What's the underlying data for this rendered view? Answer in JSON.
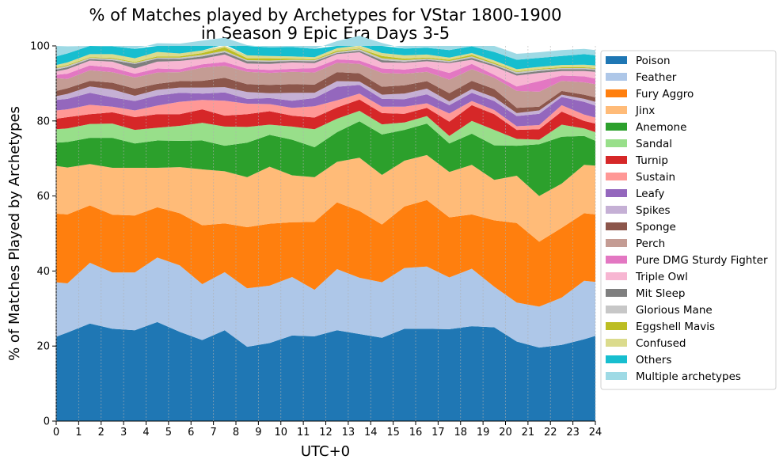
{
  "chart_data": {
    "type": "area",
    "stacked": true,
    "title_lines": [
      "% of Matches played by Archetypes for VStar 1800-1900",
      "in Season 9 Epic Era Days 3-5"
    ],
    "xlabel": "UTC+0",
    "ylabel": "% of Matches Played by Archetypes",
    "xlim": [
      0,
      24
    ],
    "ylim": [
      0,
      100
    ],
    "xticks": [
      0,
      1,
      2,
      3,
      4,
      5,
      6,
      7,
      8,
      9,
      10,
      11,
      12,
      13,
      14,
      15,
      16,
      17,
      18,
      19,
      20,
      21,
      22,
      23,
      24
    ],
    "yticks": [
      0,
      20,
      40,
      60,
      80,
      100
    ],
    "grid": "vertical dashed at x ticks",
    "legend_position": "outside-right",
    "x": [
      0,
      0.5,
      1.5,
      2.5,
      3.5,
      4.5,
      5.5,
      6.5,
      7.5,
      8.5,
      9.5,
      10.5,
      11.5,
      12.5,
      13.5,
      14.5,
      15.5,
      16.5,
      17.5,
      18.5,
      19.5,
      20.5,
      21.5,
      22.5,
      23.5,
      24
    ],
    "series": [
      {
        "name": "Poison",
        "color": "#1f77b4",
        "values": [
          22.5,
          23.6,
          26.0,
          24.6,
          24.2,
          26.4,
          23.8,
          21.6,
          24.2,
          19.8,
          20.8,
          22.8,
          22.6,
          24.2,
          23.2,
          22.2,
          24.6,
          24.6,
          24.5,
          25.3,
          25.0,
          21.2,
          19.6,
          20.3,
          21.8,
          22.7
        ]
      },
      {
        "name": "Feather",
        "color": "#aec7e8",
        "values": [
          14.5,
          13.1,
          16.2,
          15.0,
          15.4,
          17.2,
          17.7,
          14.9,
          15.5,
          15.6,
          15.3,
          15.6,
          12.4,
          16.3,
          15.0,
          14.8,
          16.2,
          16.6,
          13.8,
          15.3,
          10.8,
          10.4,
          10.9,
          12.6,
          15.6,
          14.4
        ]
      },
      {
        "name": "Fury Aggro",
        "color": "#ff7f0e",
        "values": [
          18.3,
          18.4,
          15.3,
          15.4,
          15.2,
          13.4,
          13.9,
          15.7,
          13.0,
          16.3,
          16.5,
          14.6,
          18.1,
          17.8,
          17.8,
          15.4,
          16.4,
          17.7,
          16.0,
          14.5,
          17.7,
          21.2,
          17.3,
          18.6,
          18.0,
          18.0
        ]
      },
      {
        "name": "Jinx",
        "color": "#ffbb78",
        "values": [
          12.7,
          12.5,
          11.0,
          12.5,
          12.7,
          10.5,
          12.3,
          14.9,
          13.9,
          13.3,
          15.2,
          12.5,
          11.9,
          10.8,
          14.2,
          13.2,
          12.2,
          12.0,
          12.1,
          13.2,
          10.8,
          12.6,
          12.2,
          11.8,
          12.9,
          13.0
        ]
      },
      {
        "name": "Anemone",
        "color": "#2ca02c",
        "values": [
          6.2,
          6.8,
          7.0,
          8.0,
          6.5,
          7.3,
          7.0,
          7.7,
          6.8,
          9.2,
          8.5,
          9.5,
          8.0,
          7.9,
          9.7,
          10.8,
          8.2,
          8.4,
          7.6,
          8.3,
          9.2,
          8.0,
          13.8,
          12.5,
          7.7,
          6.6
        ]
      },
      {
        "name": "Sandal",
        "color": "#98df8a",
        "values": [
          3.6,
          3.6,
          3.7,
          3.8,
          3.6,
          3.4,
          4.0,
          4.7,
          5.1,
          4.2,
          2.7,
          3.5,
          4.8,
          3.6,
          2.8,
          2.7,
          2.0,
          2.0,
          2.0,
          3.4,
          4.1,
          1.8,
          1.2,
          3.2,
          2.0,
          2.3
        ]
      },
      {
        "name": "Turnip",
        "color": "#d62728",
        "values": [
          2.8,
          3.0,
          2.6,
          3.0,
          3.4,
          3.6,
          3.1,
          3.6,
          2.9,
          3.4,
          3.6,
          2.9,
          3.1,
          3.0,
          3.0,
          3.0,
          2.3,
          2.2,
          3.8,
          4.2,
          4.2,
          2.4,
          2.8,
          3.5,
          2.0,
          2.3
        ]
      },
      {
        "name": "Sustain",
        "color": "#ff9896",
        "values": [
          2.2,
          2.1,
          2.5,
          1.5,
          1.8,
          2.3,
          3.3,
          2.5,
          4.0,
          2.8,
          1.9,
          2.1,
          3.0,
          1.9,
          1.6,
          1.7,
          1.9,
          1.2,
          2.2,
          1.1,
          1.1,
          1.0,
          1.1,
          1.7,
          1.7,
          1.6
        ]
      },
      {
        "name": "Leafy",
        "color": "#9467bd",
        "values": [
          2.8,
          2.8,
          3.2,
          2.5,
          2.5,
          2.7,
          2.4,
          1.7,
          2.2,
          1.3,
          1.6,
          1.9,
          2.2,
          3.6,
          2.3,
          2.1,
          2.0,
          2.4,
          2.2,
          2.2,
          2.4,
          2.7,
          3.0,
          2.2,
          3.4,
          3.2
        ]
      },
      {
        "name": "Spikes",
        "color": "#c5b0d5",
        "values": [
          1.0,
          1.3,
          1.7,
          2.1,
          1.4,
          1.5,
          1.4,
          1.6,
          1.4,
          1.8,
          1.3,
          2.1,
          1.4,
          1.5,
          0.9,
          1.1,
          1.5,
          1.5,
          1.0,
          1.0,
          1.0,
          0.8,
          0.9,
          0.6,
          0.8,
          1.0
        ]
      },
      {
        "name": "Sponge",
        "color": "#8c564b",
        "values": [
          1.4,
          1.5,
          1.5,
          1.8,
          1.9,
          1.6,
          1.7,
          1.8,
          2.5,
          2.1,
          2.2,
          2.3,
          2.2,
          2.4,
          2.2,
          2.1,
          2.2,
          2.0,
          2.2,
          2.2,
          2.2,
          1.4,
          1.0,
          1.0,
          1.1,
          1.2
        ]
      },
      {
        "name": "Perch",
        "color": "#c49c94",
        "values": [
          3.4,
          2.5,
          2.8,
          2.8,
          3.0,
          3.0,
          2.4,
          3.5,
          3.2,
          3.3,
          3.2,
          3.3,
          3.2,
          2.5,
          2.5,
          3.7,
          3.1,
          2.5,
          3.6,
          3.1,
          3.0,
          4.5,
          4.0,
          2.7,
          3.3,
          3.5
        ]
      },
      {
        "name": "Pure DMG Sturdy Fighter",
        "color": "#e377c2",
        "values": [
          0.9,
          1.4,
          1.3,
          1.2,
          1.0,
          1.1,
          0.8,
          0.9,
          1.0,
          0.8,
          0.8,
          0.8,
          1.2,
          0.9,
          0.9,
          1.2,
          1.1,
          1.3,
          1.8,
          1.4,
          0.8,
          1.2,
          2.8,
          1.4,
          1.6,
          1.5
        ]
      },
      {
        "name": "Triple Owl",
        "color": "#f7b6d2",
        "values": [
          0.9,
          1.2,
          1.3,
          1.6,
          1.4,
          1.8,
          2.2,
          1.5,
          2.0,
          1.4,
          1.6,
          1.7,
          1.3,
          1.4,
          2.2,
          1.6,
          1.8,
          1.5,
          2.6,
          1.1,
          2.2,
          2.9,
          2.2,
          1.2,
          1.4,
          1.8
        ]
      },
      {
        "name": "Mit Sleep",
        "color": "#7f7f7f",
        "values": [
          0.5,
          0.5,
          0.4,
          0.4,
          1.2,
          0.8,
          0.5,
          0.6,
          0.6,
          0.6,
          0.6,
          0.4,
          0.5,
          0.3,
          0.4,
          0.6,
          0.3,
          0.4,
          0.3,
          0.5,
          0.4,
          0.5,
          0.5,
          0.5,
          0.5,
          0.5
        ]
      },
      {
        "name": "Glorious Mane",
        "color": "#c7c7c7",
        "values": [
          0.4,
          0.4,
          0.3,
          0.4,
          0.3,
          0.3,
          0.4,
          0.4,
          0.4,
          0.3,
          0.3,
          0.3,
          0.3,
          0.3,
          0.4,
          0.5,
          0.4,
          0.3,
          0.3,
          0.4,
          0.3,
          0.4,
          0.4,
          0.3,
          0.3,
          0.3
        ]
      },
      {
        "name": "Eggshell Mavis",
        "color": "#bcbd22",
        "values": [
          0.2,
          0.2,
          0.2,
          0.2,
          0.2,
          0.3,
          0.3,
          0.5,
          0.9,
          0.5,
          0.6,
          0.3,
          0.2,
          0.3,
          0.2,
          0.6,
          0.4,
          0.3,
          0.3,
          0.4,
          0.3,
          0.2,
          0.2,
          0.2,
          0.2,
          0.2
        ]
      },
      {
        "name": "Confused",
        "color": "#dbdb8d",
        "values": [
          0.6,
          0.7,
          0.8,
          1.0,
          1.0,
          1.2,
          0.8,
          0.7,
          0.8,
          0.8,
          0.6,
          0.6,
          0.6,
          0.7,
          0.8,
          0.8,
          0.9,
          0.8,
          0.6,
          0.5,
          0.6,
          0.6,
          0.5,
          0.6,
          0.7,
          0.7
        ]
      },
      {
        "name": "Others",
        "color": "#17becf",
        "values": [
          2.3,
          2.4,
          2.2,
          2.1,
          2.5,
          2.3,
          2.6,
          2.6,
          1.8,
          2.7,
          2.3,
          2.5,
          2.2,
          1.9,
          2.6,
          2.7,
          1.8,
          1.8,
          2.0,
          1.8,
          2.3,
          2.5,
          2.4,
          2.4,
          2.8,
          2.7
        ]
      },
      {
        "name": "Multiple archetypes",
        "color": "#9edae5",
        "values": [
          2.8,
          1.9,
          1.1,
          1.4,
          1.5,
          1.6,
          1.5,
          1.7,
          1.6,
          1.9,
          1.7,
          2.3,
          1.5,
          1.5,
          1.5,
          1.5,
          1.6,
          1.5,
          1.3,
          1.3,
          1.8,
          1.6,
          1.5,
          1.6,
          1.4,
          1.4
        ]
      }
    ]
  }
}
